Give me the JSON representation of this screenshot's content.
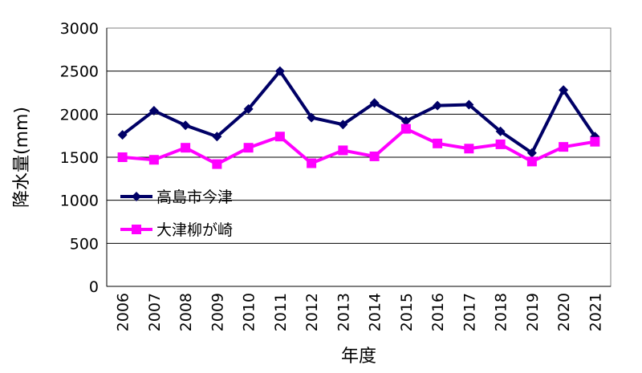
{
  "chart_data": {
    "type": "line",
    "title": "",
    "xlabel": "年度",
    "ylabel": "降水量(mm)",
    "ylim": [
      0,
      3000
    ],
    "yticks": [
      0,
      500,
      1000,
      1500,
      2000,
      2500,
      3000
    ],
    "grid": true,
    "legend_position": "left-center",
    "categories": [
      "2006",
      "2007",
      "2008",
      "2009",
      "2010",
      "2011",
      "2012",
      "2013",
      "2014",
      "2015",
      "2016",
      "2017",
      "2018",
      "2019",
      "2020",
      "2021"
    ],
    "series": [
      {
        "name": "高島市今津",
        "color": "#000066",
        "marker": "diamond",
        "values": [
          1760,
          2040,
          1870,
          1740,
          2060,
          2500,
          1960,
          1880,
          2130,
          1920,
          2100,
          2110,
          1800,
          1550,
          2280,
          1740
        ]
      },
      {
        "name": "大津柳が崎",
        "color": "#ff00ff",
        "marker": "square",
        "values": [
          1500,
          1470,
          1610,
          1420,
          1610,
          1740,
          1430,
          1580,
          1510,
          1830,
          1660,
          1600,
          1650,
          1450,
          1620,
          1680
        ]
      }
    ]
  }
}
